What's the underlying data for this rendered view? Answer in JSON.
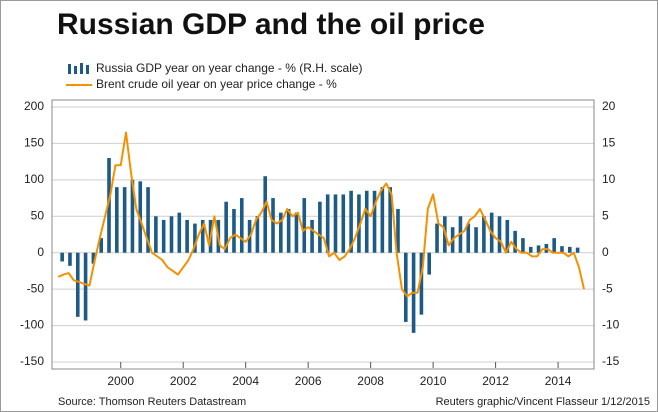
{
  "chart_data": {
    "type": "bar-line",
    "title": "Russian GDP and the oil price",
    "source": "Source: Thomson Reuters Datastream",
    "credit": "Reuters graphic/Vincent Flasseur 1/12/2015",
    "xlim": [
      1997.8,
      2015.15
    ],
    "xticks": [
      2000,
      2002,
      2004,
      2006,
      2008,
      2010,
      2012,
      2014
    ],
    "ylim": [
      -150,
      200
    ],
    "yticks": [
      200,
      150,
      100,
      50,
      0,
      -50,
      -100,
      -150
    ],
    "y2lim": [
      -15,
      20
    ],
    "y2ticks": [
      20,
      15,
      10,
      5,
      0,
      -5,
      -10,
      -15
    ],
    "grid": true,
    "series": [
      {
        "name": "Russia GDP year on year change - % (R.H. scale)",
        "type": "bar",
        "axis": "y2",
        "color": "#1d5a85",
        "x": [
          1998,
          1998.25,
          1998.5,
          1998.75,
          1999,
          1999.25,
          1999.5,
          1999.75,
          2000,
          2000.25,
          2000.5,
          2000.75,
          2001,
          2001.25,
          2001.5,
          2001.75,
          2002,
          2002.25,
          2002.5,
          2002.75,
          2003,
          2003.25,
          2003.5,
          2003.75,
          2004,
          2004.25,
          2004.5,
          2004.75,
          2005,
          2005.25,
          2005.5,
          2005.75,
          2006,
          2006.25,
          2006.5,
          2006.75,
          2007,
          2007.25,
          2007.5,
          2007.75,
          2008,
          2008.25,
          2008.5,
          2008.75,
          2009,
          2009.25,
          2009.5,
          2009.75,
          2010,
          2010.25,
          2010.5,
          2010.75,
          2011,
          2011.25,
          2011.5,
          2011.75,
          2012,
          2012.25,
          2012.5,
          2012.75,
          2013,
          2013.25,
          2013.5,
          2013.75,
          2014,
          2014.25,
          2014.5
        ],
        "values": [
          -1.2,
          -1.8,
          -8.8,
          -9.3,
          -1.5,
          2.0,
          13.0,
          9.0,
          9.0,
          10.0,
          9.8,
          9.0,
          5.0,
          4.5,
          5.0,
          5.5,
          4.5,
          4.0,
          4.5,
          4.5,
          4.5,
          7.0,
          6.0,
          7.5,
          4.5,
          5.0,
          10.5,
          7.5,
          5.5,
          6.0,
          5.5,
          7.5,
          4.5,
          7.0,
          8.0,
          8.0,
          8.0,
          8.5,
          8.0,
          8.5,
          8.5,
          9.0,
          9.0,
          6.0,
          -9.5,
          -11.0,
          -8.5,
          -3.0,
          4.0,
          5.0,
          3.5,
          5.0,
          4.0,
          3.5,
          5.0,
          5.5,
          5.0,
          4.5,
          3.0,
          2.0,
          0.8,
          1.0,
          1.2,
          2.0,
          0.9,
          0.8,
          0.7
        ]
      },
      {
        "name": "Brent crude oil year on year price change - %",
        "type": "line",
        "color": "#f39200",
        "x": [
          1998,
          1998.17,
          1998.33,
          1998.5,
          1998.67,
          1998.83,
          1999,
          1999.17,
          1999.33,
          1999.5,
          1999.67,
          1999.83,
          2000,
          2000.17,
          2000.33,
          2000.5,
          2000.67,
          2000.83,
          2001,
          2001.17,
          2001.33,
          2001.5,
          2001.67,
          2001.83,
          2002,
          2002.17,
          2002.33,
          2002.5,
          2002.67,
          2002.83,
          2003,
          2003.17,
          2003.33,
          2003.5,
          2003.67,
          2003.83,
          2004,
          2004.17,
          2004.33,
          2004.5,
          2004.67,
          2004.83,
          2005,
          2005.17,
          2005.33,
          2005.5,
          2005.67,
          2005.83,
          2006,
          2006.17,
          2006.33,
          2006.5,
          2006.67,
          2006.83,
          2007,
          2007.17,
          2007.33,
          2007.5,
          2007.67,
          2007.83,
          2008,
          2008.17,
          2008.33,
          2008.5,
          2008.67,
          2008.83,
          2009,
          2009.17,
          2009.33,
          2009.5,
          2009.67,
          2009.83,
          2010,
          2010.17,
          2010.33,
          2010.5,
          2010.67,
          2010.83,
          2011,
          2011.17,
          2011.33,
          2011.5,
          2011.67,
          2011.83,
          2012,
          2012.17,
          2012.33,
          2012.5,
          2012.67,
          2012.83,
          2013,
          2013.17,
          2013.33,
          2013.5,
          2013.67,
          2013.83,
          2014,
          2014.17,
          2014.33,
          2014.5,
          2014.67,
          2014.83
        ],
        "values": [
          -33,
          -30,
          -28,
          -38,
          -40,
          -43,
          -45,
          -10,
          20,
          50,
          80,
          120,
          120,
          165,
          110,
          60,
          40,
          20,
          0,
          -5,
          -10,
          -20,
          -25,
          -30,
          -20,
          -10,
          5,
          25,
          40,
          10,
          50,
          10,
          5,
          20,
          25,
          20,
          15,
          25,
          45,
          55,
          70,
          45,
          40,
          45,
          60,
          50,
          55,
          30,
          35,
          30,
          25,
          20,
          -5,
          0,
          -10,
          -5,
          5,
          20,
          40,
          60,
          50,
          70,
          85,
          95,
          80,
          0,
          -50,
          -60,
          -55,
          -55,
          -20,
          60,
          80,
          40,
          35,
          10,
          20,
          25,
          30,
          45,
          50,
          60,
          45,
          30,
          20,
          15,
          0,
          15,
          5,
          0,
          0,
          -5,
          -5,
          5,
          5,
          0,
          0,
          0,
          -5,
          0,
          -20,
          -50
        ]
      }
    ]
  }
}
